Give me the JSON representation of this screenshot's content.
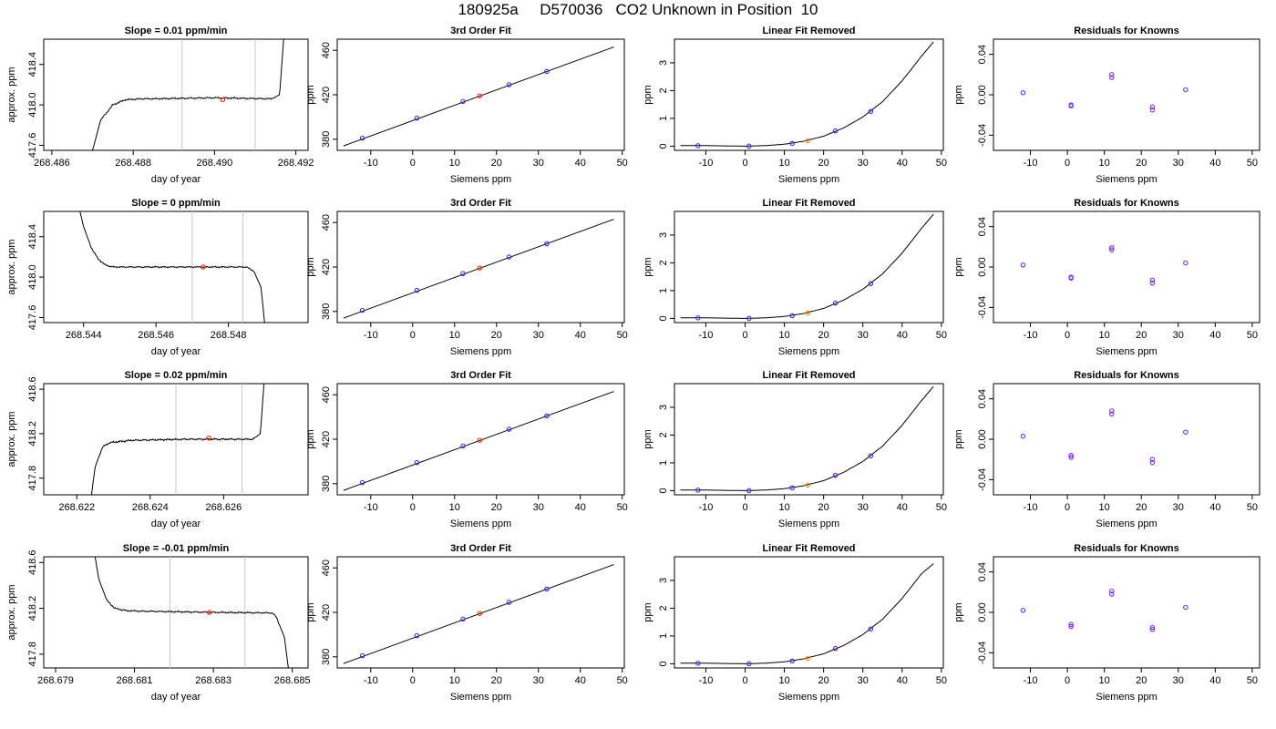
{
  "page": {
    "title": "180925a     D570036   CO2 Unknown in Position  10"
  },
  "colors": {
    "axis": "#000000",
    "curve": "#000000",
    "marker_lines": "#c8c8c8",
    "unknown_point": "#ff2a00",
    "linear_unknown_point": "#ff8c00",
    "known_point": "#3a2cff",
    "residual_point": "#7a2cff"
  },
  "chart_data": [
    {
      "type": "line",
      "row": 0,
      "panel": "timeseries",
      "title": "Slope =  0.01  ppm/min",
      "xlabel": "day of year",
      "ylabel": "approx. ppm",
      "xlim": [
        268.4858,
        268.4923
      ],
      "ylim": [
        417.55,
        418.65
      ],
      "xticks": [
        268.486,
        268.488,
        268.49,
        268.492
      ],
      "xtick_labels": [
        "268.486",
        "268.488",
        "268.490",
        "268.492"
      ],
      "yticks": [
        417.6,
        418.0,
        418.4
      ],
      "ytick_labels": [
        "417.6",
        "418.0",
        "418.4"
      ],
      "vlines": [
        268.4892,
        268.491
      ],
      "curve": {
        "x": [
          268.487,
          268.4872,
          268.4875,
          268.4878,
          268.4882,
          268.4885,
          268.49,
          268.4914,
          268.4916,
          268.4917
        ],
        "y": [
          417.55,
          417.85,
          418.0,
          418.05,
          418.06,
          418.06,
          418.07,
          418.06,
          418.1,
          418.65
        ]
      },
      "noise": 0.007,
      "marker": {
        "x": 268.4902,
        "y": 418.05
      }
    },
    {
      "type": "line",
      "row": 0,
      "panel": "fit",
      "title": "3rd Order Fit",
      "xlabel": "Siemens ppm",
      "ylabel": "ppm",
      "xlim": [
        -18,
        50.5
      ],
      "ylim": [
        370,
        470
      ],
      "xticks": [
        -10,
        0,
        10,
        20,
        30,
        40,
        50
      ],
      "xtick_labels": [
        "-10",
        "0",
        "10",
        "20",
        "30",
        "40",
        "50"
      ],
      "yticks": [
        380,
        420,
        460
      ],
      "ytick_labels": [
        "380",
        "420",
        "460"
      ],
      "line": {
        "x": [
          -16.5,
          48
        ],
        "y": [
          374,
          463
        ]
      },
      "knowns": {
        "x": [
          -12,
          1,
          12,
          23,
          32
        ],
        "y": [
          381,
          399,
          414,
          429,
          441
        ]
      },
      "unknown": {
        "x": 16,
        "y": 419
      }
    },
    {
      "type": "line",
      "row": 0,
      "panel": "linear",
      "title": "Linear Fit Removed",
      "xlabel": "Siemens ppm",
      "ylabel": "ppm",
      "xlim": [
        -18,
        50.5
      ],
      "ylim": [
        -0.15,
        3.85
      ],
      "xticks": [
        -10,
        0,
        10,
        20,
        30,
        40,
        50
      ],
      "xtick_labels": [
        "-10",
        "0",
        "10",
        "20",
        "30",
        "40",
        "50"
      ],
      "yticks": [
        0,
        1,
        2,
        3
      ],
      "ytick_labels": [
        "0",
        "1",
        "2",
        "3"
      ],
      "curve": {
        "x": [
          -16.5,
          -10,
          0,
          5,
          10,
          15,
          20,
          25,
          30,
          35,
          40,
          45,
          48
        ],
        "y": [
          0.02,
          0.02,
          0.0,
          0.02,
          0.07,
          0.18,
          0.36,
          0.65,
          1.05,
          1.6,
          2.35,
          3.25,
          3.75
        ]
      },
      "knowns": {
        "x": [
          -12,
          1,
          12,
          23,
          32
        ],
        "y": [
          0.02,
          0.0,
          0.1,
          0.55,
          1.25
        ]
      },
      "unknown": {
        "x": 16,
        "y": 0.2
      }
    },
    {
      "type": "scatter",
      "row": 0,
      "panel": "residuals",
      "title": "Residuals for Knowns",
      "xlabel": "Siemens ppm",
      "ylabel": "ppm",
      "xlim": [
        -20,
        52
      ],
      "ylim": [
        -0.055,
        0.055
      ],
      "xticks": [
        -10,
        0,
        10,
        20,
        30,
        40,
        50
      ],
      "xtick_labels": [
        "-10",
        "0",
        "10",
        "20",
        "30",
        "40",
        "50"
      ],
      "yticks": [
        -0.04,
        0.0,
        0.04
      ],
      "ytick_labels": [
        "-0.04",
        "0.00",
        "0.04"
      ],
      "points": {
        "x": [
          -12,
          1,
          1,
          12,
          12,
          23,
          23,
          32
        ],
        "y": [
          0.002,
          -0.01,
          -0.011,
          0.017,
          0.02,
          -0.015,
          -0.012,
          0.005
        ]
      }
    },
    {
      "type": "line",
      "row": 1,
      "panel": "timeseries",
      "title": "Slope =  0  ppm/min",
      "xlabel": "day of year",
      "ylabel": "approx. ppm",
      "xlim": [
        268.5429,
        268.5502
      ],
      "ylim": [
        417.55,
        418.65
      ],
      "xticks": [
        268.544,
        268.546,
        268.548
      ],
      "xtick_labels": [
        "268.544",
        "268.546",
        "268.548"
      ],
      "yticks": [
        417.6,
        418.0,
        418.4
      ],
      "ytick_labels": [
        "417.6",
        "418.0",
        "418.4"
      ],
      "vlines": [
        268.547,
        268.5484
      ],
      "curve": {
        "x": [
          268.5439,
          268.544,
          268.5442,
          268.5444,
          268.5446,
          268.5448,
          268.546,
          268.5485,
          268.5487,
          268.5489,
          268.549
        ],
        "y": [
          418.65,
          418.5,
          418.3,
          418.18,
          418.12,
          418.1,
          418.1,
          418.1,
          418.06,
          417.9,
          417.55
        ]
      },
      "noise": 0.006,
      "marker": {
        "x": 268.5473,
        "y": 418.1
      }
    },
    {
      "type": "line",
      "row": 1,
      "panel": "fit",
      "title": "3rd Order Fit",
      "xlabel": "Siemens ppm",
      "ylabel": "ppm",
      "xlim": [
        -18,
        50.5
      ],
      "ylim": [
        370,
        470
      ],
      "xticks": [
        -10,
        0,
        10,
        20,
        30,
        40,
        50
      ],
      "xtick_labels": [
        "-10",
        "0",
        "10",
        "20",
        "30",
        "40",
        "50"
      ],
      "yticks": [
        380,
        420,
        460
      ],
      "ytick_labels": [
        "380",
        "420",
        "460"
      ],
      "line": {
        "x": [
          -16.5,
          48
        ],
        "y": [
          374,
          463
        ]
      },
      "knowns": {
        "x": [
          -12,
          1,
          12,
          23,
          32
        ],
        "y": [
          381,
          399,
          414,
          429,
          441
        ]
      },
      "unknown": {
        "x": 16,
        "y": 419
      }
    },
    {
      "type": "line",
      "row": 1,
      "panel": "linear",
      "title": "Linear Fit Removed",
      "xlabel": "Siemens ppm",
      "ylabel": "ppm",
      "xlim": [
        -18,
        50.5
      ],
      "ylim": [
        -0.15,
        3.85
      ],
      "xticks": [
        -10,
        0,
        10,
        20,
        30,
        40,
        50
      ],
      "xtick_labels": [
        "-10",
        "0",
        "10",
        "20",
        "30",
        "40",
        "50"
      ],
      "yticks": [
        0,
        1,
        2,
        3
      ],
      "ytick_labels": [
        "0",
        "1",
        "2",
        "3"
      ],
      "curve": {
        "x": [
          -16.5,
          -10,
          0,
          5,
          10,
          15,
          20,
          25,
          30,
          35,
          40,
          45,
          48
        ],
        "y": [
          0.02,
          0.02,
          0.0,
          0.02,
          0.07,
          0.18,
          0.36,
          0.65,
          1.05,
          1.6,
          2.35,
          3.25,
          3.75
        ]
      },
      "knowns": {
        "x": [
          -12,
          1,
          12,
          23,
          32
        ],
        "y": [
          0.02,
          0.0,
          0.1,
          0.55,
          1.25
        ]
      },
      "unknown": {
        "x": 16,
        "y": 0.2
      }
    },
    {
      "type": "scatter",
      "row": 1,
      "panel": "residuals",
      "title": "Residuals for Knowns",
      "xlabel": "Siemens ppm",
      "ylabel": "ppm",
      "xlim": [
        -20,
        52
      ],
      "ylim": [
        -0.055,
        0.055
      ],
      "xticks": [
        -10,
        0,
        10,
        20,
        30,
        40,
        50
      ],
      "xtick_labels": [
        "-10",
        "0",
        "10",
        "20",
        "30",
        "40",
        "50"
      ],
      "yticks": [
        -0.04,
        0.0,
        0.04
      ],
      "ytick_labels": [
        "-0.04",
        "0.00",
        "0.04"
      ],
      "points": {
        "x": [
          -12,
          1,
          1,
          12,
          12,
          23,
          23,
          32
        ],
        "y": [
          0.002,
          -0.01,
          -0.011,
          0.017,
          0.019,
          -0.016,
          -0.013,
          0.004
        ]
      }
    },
    {
      "type": "line",
      "row": 2,
      "panel": "timeseries",
      "title": "Slope =  0.02  ppm/min",
      "xlabel": "day of year",
      "ylabel": "approx. ppm",
      "xlim": [
        268.6211,
        268.6283
      ],
      "ylim": [
        417.65,
        418.65
      ],
      "xticks": [
        268.622,
        268.624,
        268.626
      ],
      "xtick_labels": [
        "268.622",
        "268.624",
        "268.626"
      ],
      "yticks": [
        417.8,
        418.2,
        418.6
      ],
      "ytick_labels": [
        "417.8",
        "418.2",
        "418.6"
      ],
      "vlines": [
        268.6247,
        268.6265
      ],
      "curve": {
        "x": [
          268.6224,
          268.6225,
          268.6227,
          268.6229,
          268.6232,
          268.6235,
          268.625,
          268.6268,
          268.627,
          268.6271
        ],
        "y": [
          417.65,
          417.9,
          418.08,
          418.12,
          418.13,
          418.14,
          418.15,
          418.15,
          418.2,
          418.65
        ]
      },
      "noise": 0.007,
      "marker": {
        "x": 268.6256,
        "y": 418.16
      }
    },
    {
      "type": "line",
      "row": 2,
      "panel": "fit",
      "title": "3rd Order Fit",
      "xlabel": "Siemens ppm",
      "ylabel": "ppm",
      "xlim": [
        -18,
        50.5
      ],
      "ylim": [
        370,
        470
      ],
      "xticks": [
        -10,
        0,
        10,
        20,
        30,
        40,
        50
      ],
      "xtick_labels": [
        "-10",
        "0",
        "10",
        "20",
        "30",
        "40",
        "50"
      ],
      "yticks": [
        380,
        420,
        460
      ],
      "ytick_labels": [
        "380",
        "420",
        "460"
      ],
      "line": {
        "x": [
          -16.5,
          48
        ],
        "y": [
          374,
          463
        ]
      },
      "knowns": {
        "x": [
          -12,
          1,
          12,
          23,
          32
        ],
        "y": [
          381,
          399,
          414,
          429,
          441
        ]
      },
      "unknown": {
        "x": 16,
        "y": 419
      }
    },
    {
      "type": "line",
      "row": 2,
      "panel": "linear",
      "title": "Linear Fit Removed",
      "xlabel": "Siemens ppm",
      "ylabel": "ppm",
      "xlim": [
        -18,
        50.5
      ],
      "ylim": [
        -0.15,
        3.85
      ],
      "xticks": [
        -10,
        0,
        10,
        20,
        30,
        40,
        50
      ],
      "xtick_labels": [
        "-10",
        "0",
        "10",
        "20",
        "30",
        "40",
        "50"
      ],
      "yticks": [
        0,
        1,
        2,
        3
      ],
      "ytick_labels": [
        "0",
        "1",
        "2",
        "3"
      ],
      "curve": {
        "x": [
          -16.5,
          -10,
          0,
          5,
          10,
          15,
          20,
          25,
          30,
          35,
          40,
          45,
          48
        ],
        "y": [
          0.02,
          0.02,
          0.0,
          0.02,
          0.07,
          0.18,
          0.36,
          0.65,
          1.05,
          1.6,
          2.35,
          3.25,
          3.75
        ]
      },
      "knowns": {
        "x": [
          -12,
          1,
          12,
          23,
          32
        ],
        "y": [
          0.02,
          0.0,
          0.1,
          0.55,
          1.25
        ]
      },
      "unknown": {
        "x": 16,
        "y": 0.2
      }
    },
    {
      "type": "scatter",
      "row": 2,
      "panel": "residuals",
      "title": "Residuals for Knowns",
      "xlabel": "Siemens ppm",
      "ylabel": "ppm",
      "xlim": [
        -20,
        52
      ],
      "ylim": [
        -0.055,
        0.055
      ],
      "xticks": [
        -10,
        0,
        10,
        20,
        30,
        40,
        50
      ],
      "xtick_labels": [
        "-10",
        "0",
        "10",
        "20",
        "30",
        "40",
        "50"
      ],
      "yticks": [
        -0.04,
        0.0,
        0.04
      ],
      "ytick_labels": [
        "-0.04",
        "0.00",
        "0.04"
      ],
      "points": {
        "x": [
          -12,
          1,
          1,
          12,
          12,
          23,
          23,
          32
        ],
        "y": [
          0.003,
          -0.016,
          -0.018,
          0.025,
          0.028,
          -0.02,
          -0.023,
          0.007
        ]
      }
    },
    {
      "type": "line",
      "row": 3,
      "panel": "timeseries",
      "title": "Slope =  -0.01  ppm/min",
      "xlabel": "day of year",
      "ylabel": "approx. ppm",
      "xlim": [
        268.6787,
        268.6854
      ],
      "ylim": [
        417.68,
        418.65
      ],
      "xticks": [
        268.679,
        268.681,
        268.683,
        268.685
      ],
      "xtick_labels": [
        "268.679",
        "268.681",
        "268.683",
        "268.685"
      ],
      "yticks": [
        417.8,
        418.2,
        418.6
      ],
      "ytick_labels": [
        "417.8",
        "418.2",
        "418.6"
      ],
      "vlines": [
        268.6819,
        268.6838
      ],
      "curve": {
        "x": [
          268.68,
          268.6801,
          268.6803,
          268.6805,
          268.6808,
          268.6812,
          268.683,
          268.6845,
          268.6846,
          268.6848,
          268.6849
        ],
        "y": [
          418.65,
          418.45,
          418.27,
          418.2,
          418.18,
          418.175,
          418.165,
          418.16,
          418.12,
          417.95,
          417.68
        ]
      },
      "noise": 0.006,
      "marker": {
        "x": 268.6829,
        "y": 418.165
      }
    },
    {
      "type": "line",
      "row": 3,
      "panel": "fit",
      "title": "3rd Order Fit",
      "xlabel": "Siemens ppm",
      "ylabel": "ppm",
      "xlim": [
        -18,
        50.5
      ],
      "ylim": [
        370,
        470
      ],
      "xticks": [
        -10,
        0,
        10,
        20,
        30,
        40,
        50
      ],
      "xtick_labels": [
        "-10",
        "0",
        "10",
        "20",
        "30",
        "40",
        "50"
      ],
      "yticks": [
        380,
        420,
        460
      ],
      "ytick_labels": [
        "380",
        "420",
        "460"
      ],
      "line": {
        "x": [
          -16.5,
          48
        ],
        "y": [
          374,
          463
        ]
      },
      "knowns": {
        "x": [
          -12,
          1,
          12,
          23,
          32
        ],
        "y": [
          381,
          399,
          414,
          429,
          441
        ]
      },
      "unknown": {
        "x": 16,
        "y": 419
      }
    },
    {
      "type": "line",
      "row": 3,
      "panel": "linear",
      "title": "Linear Fit Removed",
      "xlabel": "Siemens ppm",
      "ylabel": "ppm",
      "xlim": [
        -18,
        50.5
      ],
      "ylim": [
        -0.15,
        3.85
      ],
      "xticks": [
        -10,
        0,
        10,
        20,
        30,
        40,
        50
      ],
      "xtick_labels": [
        "-10",
        "0",
        "10",
        "20",
        "30",
        "40",
        "50"
      ],
      "yticks": [
        0,
        1,
        2,
        3
      ],
      "ytick_labels": [
        "0",
        "1",
        "2",
        "3"
      ],
      "curve": {
        "x": [
          -16.5,
          -10,
          0,
          5,
          10,
          15,
          20,
          25,
          30,
          35,
          40,
          45,
          48
        ],
        "y": [
          0.02,
          0.02,
          0.0,
          0.02,
          0.07,
          0.18,
          0.36,
          0.65,
          1.05,
          1.6,
          2.35,
          3.25,
          3.6
        ]
      },
      "knowns": {
        "x": [
          -12,
          1,
          12,
          23,
          32
        ],
        "y": [
          0.02,
          0.0,
          0.1,
          0.55,
          1.25
        ]
      },
      "unknown": {
        "x": 16,
        "y": 0.2
      }
    },
    {
      "type": "scatter",
      "row": 3,
      "panel": "residuals",
      "title": "Residuals for Knowns",
      "xlabel": "Siemens ppm",
      "ylabel": "ppm",
      "xlim": [
        -20,
        52
      ],
      "ylim": [
        -0.055,
        0.055
      ],
      "xticks": [
        -10,
        0,
        10,
        20,
        30,
        40,
        50
      ],
      "xtick_labels": [
        "-10",
        "0",
        "10",
        "20",
        "30",
        "40",
        "50"
      ],
      "yticks": [
        -0.04,
        0.0,
        0.04
      ],
      "ytick_labels": [
        "-0.04",
        "0.00",
        "0.04"
      ],
      "points": {
        "x": [
          -12,
          1,
          1,
          12,
          12,
          23,
          23,
          32
        ],
        "y": [
          0.002,
          -0.012,
          -0.014,
          0.018,
          0.021,
          -0.015,
          -0.017,
          0.005
        ]
      }
    }
  ]
}
